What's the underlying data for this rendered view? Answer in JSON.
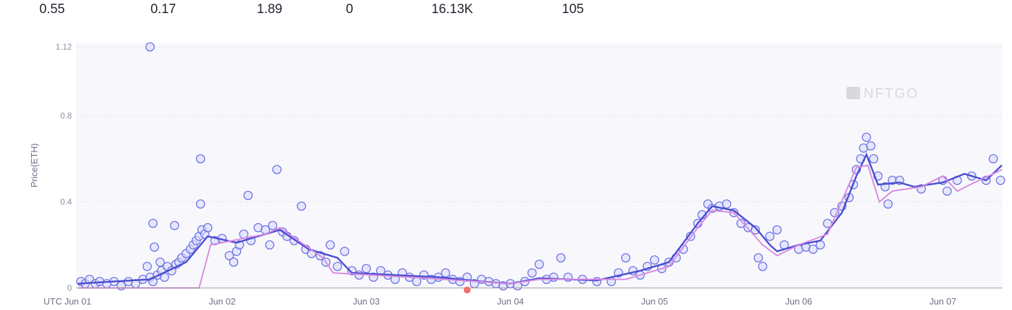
{
  "stats": [
    {
      "value": "0.55"
    },
    {
      "value": "0.17"
    },
    {
      "value": "1.89"
    },
    {
      "value": "0"
    },
    {
      "value": "16.13K"
    },
    {
      "value": "105"
    }
  ],
  "watermark": "NFTGO",
  "chart_data": {
    "type": "scatter",
    "ylabel": "Price(ETH)",
    "xlabel": "",
    "x_tick_labels": [
      "UTC Jun 01",
      "Jun 02",
      "Jun 03",
      "Jun 04",
      "Jun 05",
      "Jun 06",
      "Jun 07"
    ],
    "y_ticks": [
      0,
      0.4,
      0.8,
      1.12
    ],
    "y_tick_labels": [
      "0",
      "0.4",
      "0.8",
      "1.12"
    ],
    "xlim_days": [
      0,
      6.41
    ],
    "ylim": [
      0,
      1.12
    ],
    "grid": true,
    "colors": {
      "points": "#6b6fe6",
      "point_fill": "#d9dbfa",
      "line_avg": "#4b4fd0",
      "line_floor": "#d88ae0",
      "marker": "#f07070"
    },
    "series": [
      {
        "name": "average",
        "type": "line",
        "points": [
          [
            0,
            0.02
          ],
          [
            0.5,
            0.04
          ],
          [
            0.75,
            0.12
          ],
          [
            0.85,
            0.2
          ],
          [
            0.9,
            0.24
          ],
          [
            1.1,
            0.21
          ],
          [
            1.3,
            0.25
          ],
          [
            1.4,
            0.27
          ],
          [
            1.6,
            0.18
          ],
          [
            1.8,
            0.14
          ],
          [
            1.9,
            0.07
          ],
          [
            2.2,
            0.06
          ],
          [
            2.5,
            0.05
          ],
          [
            2.8,
            0.03
          ],
          [
            3.0,
            0.02
          ],
          [
            3.2,
            0.045
          ],
          [
            3.4,
            0.04
          ],
          [
            3.6,
            0.035
          ],
          [
            3.7,
            0.05
          ],
          [
            3.9,
            0.08
          ],
          [
            4.1,
            0.12
          ],
          [
            4.3,
            0.3
          ],
          [
            4.4,
            0.38
          ],
          [
            4.55,
            0.36
          ],
          [
            4.7,
            0.28
          ],
          [
            4.8,
            0.2
          ],
          [
            4.85,
            0.17
          ],
          [
            5.0,
            0.2
          ],
          [
            5.15,
            0.22
          ],
          [
            5.3,
            0.35
          ],
          [
            5.4,
            0.52
          ],
          [
            5.47,
            0.62
          ],
          [
            5.55,
            0.48
          ],
          [
            5.7,
            0.49
          ],
          [
            5.8,
            0.47
          ],
          [
            6.0,
            0.49
          ],
          [
            6.15,
            0.53
          ],
          [
            6.3,
            0.5
          ],
          [
            6.41,
            0.57
          ]
        ]
      },
      {
        "name": "floor",
        "type": "line",
        "points": [
          [
            0,
            0
          ],
          [
            0.84,
            0
          ],
          [
            0.92,
            0.2
          ],
          [
            1.3,
            0.25
          ],
          [
            1.4,
            0.28
          ],
          [
            1.7,
            0.14
          ],
          [
            1.77,
            0.07
          ],
          [
            2.3,
            0.05
          ],
          [
            3.0,
            0.02
          ],
          [
            3.2,
            0.04
          ],
          [
            3.8,
            0.04
          ],
          [
            4.1,
            0.1
          ],
          [
            4.3,
            0.28
          ],
          [
            4.4,
            0.36
          ],
          [
            4.55,
            0.35
          ],
          [
            4.75,
            0.2
          ],
          [
            4.85,
            0.15
          ],
          [
            5.0,
            0.2
          ],
          [
            5.2,
            0.25
          ],
          [
            5.4,
            0.56
          ],
          [
            5.48,
            0.57
          ],
          [
            5.56,
            0.4
          ],
          [
            5.65,
            0.45
          ],
          [
            5.85,
            0.47
          ],
          [
            6.0,
            0.52
          ],
          [
            6.1,
            0.45
          ],
          [
            6.25,
            0.5
          ],
          [
            6.35,
            0.53
          ],
          [
            6.41,
            0.55
          ]
        ]
      },
      {
        "name": "sales",
        "type": "scatter",
        "points": [
          [
            0.02,
            0.03
          ],
          [
            0.05,
            0.02
          ],
          [
            0.08,
            0.04
          ],
          [
            0.12,
            0.02
          ],
          [
            0.15,
            0.03
          ],
          [
            0.2,
            0.02
          ],
          [
            0.25,
            0.03
          ],
          [
            0.3,
            0.01
          ],
          [
            0.35,
            0.03
          ],
          [
            0.4,
            0.02
          ],
          [
            0.45,
            0.04
          ],
          [
            0.5,
            0.05
          ],
          [
            0.52,
            0.03
          ],
          [
            0.55,
            0.06
          ],
          [
            0.58,
            0.08
          ],
          [
            0.6,
            0.05
          ],
          [
            0.62,
            0.1
          ],
          [
            0.65,
            0.08
          ],
          [
            0.68,
            0.11
          ],
          [
            0.7,
            0.12
          ],
          [
            0.72,
            0.14
          ],
          [
            0.75,
            0.16
          ],
          [
            0.78,
            0.18
          ],
          [
            0.8,
            0.2
          ],
          [
            0.82,
            0.22
          ],
          [
            0.84,
            0.24
          ],
          [
            0.86,
            0.27
          ],
          [
            0.88,
            0.25
          ],
          [
            0.9,
            0.28
          ],
          [
            0.48,
            0.1
          ],
          [
            0.57,
            0.12
          ],
          [
            0.52,
            0.3
          ],
          [
            0.53,
            0.19
          ],
          [
            0.67,
            0.29
          ],
          [
            0.85,
            0.39
          ],
          [
            0.85,
            0.6
          ],
          [
            0.5,
            1.12
          ],
          [
            0.95,
            0.22
          ],
          [
            1.0,
            0.23
          ],
          [
            1.05,
            0.15
          ],
          [
            1.08,
            0.12
          ],
          [
            1.1,
            0.17
          ],
          [
            1.12,
            0.2
          ],
          [
            1.15,
            0.25
          ],
          [
            1.2,
            0.22
          ],
          [
            1.18,
            0.43
          ],
          [
            1.25,
            0.28
          ],
          [
            1.3,
            0.27
          ],
          [
            1.33,
            0.2
          ],
          [
            1.35,
            0.29
          ],
          [
            1.38,
            0.55
          ],
          [
            1.42,
            0.26
          ],
          [
            1.45,
            0.24
          ],
          [
            1.5,
            0.22
          ],
          [
            1.55,
            0.38
          ],
          [
            1.58,
            0.18
          ],
          [
            1.62,
            0.16
          ],
          [
            1.68,
            0.15
          ],
          [
            1.72,
            0.12
          ],
          [
            1.75,
            0.2
          ],
          [
            1.8,
            0.1
          ],
          [
            1.85,
            0.17
          ],
          [
            1.9,
            0.08
          ],
          [
            1.95,
            0.06
          ],
          [
            2.0,
            0.09
          ],
          [
            2.05,
            0.05
          ],
          [
            2.1,
            0.08
          ],
          [
            2.15,
            0.06
          ],
          [
            2.2,
            0.04
          ],
          [
            2.25,
            0.07
          ],
          [
            2.3,
            0.05
          ],
          [
            2.35,
            0.03
          ],
          [
            2.4,
            0.06
          ],
          [
            2.45,
            0.04
          ],
          [
            2.5,
            0.05
          ],
          [
            2.55,
            0.07
          ],
          [
            2.6,
            0.04
          ],
          [
            2.65,
            0.03
          ],
          [
            2.7,
            0.05
          ],
          [
            2.75,
            0.02
          ],
          [
            2.8,
            0.04
          ],
          [
            2.85,
            0.03
          ],
          [
            2.9,
            0.02
          ],
          [
            2.95,
            0.01
          ],
          [
            3.0,
            0.02
          ],
          [
            3.05,
            0.01
          ],
          [
            3.1,
            0.03
          ],
          [
            3.15,
            0.07
          ],
          [
            3.2,
            0.11
          ],
          [
            3.25,
            0.04
          ],
          [
            3.3,
            0.05
          ],
          [
            3.35,
            0.14
          ],
          [
            3.4,
            0.05
          ],
          [
            3.5,
            0.04
          ],
          [
            3.6,
            0.03
          ],
          [
            3.7,
            0.03
          ],
          [
            3.75,
            0.07
          ],
          [
            3.8,
            0.14
          ],
          [
            3.85,
            0.08
          ],
          [
            3.9,
            0.06
          ],
          [
            3.95,
            0.1
          ],
          [
            4.0,
            0.13
          ],
          [
            4.05,
            0.09
          ],
          [
            4.1,
            0.12
          ],
          [
            4.15,
            0.14
          ],
          [
            4.2,
            0.18
          ],
          [
            4.25,
            0.24
          ],
          [
            4.3,
            0.3
          ],
          [
            4.33,
            0.34
          ],
          [
            4.37,
            0.39
          ],
          [
            4.4,
            0.37
          ],
          [
            4.45,
            0.38
          ],
          [
            4.5,
            0.39
          ],
          [
            4.55,
            0.35
          ],
          [
            4.6,
            0.3
          ],
          [
            4.65,
            0.28
          ],
          [
            4.7,
            0.27
          ],
          [
            4.72,
            0.14
          ],
          [
            4.75,
            0.1
          ],
          [
            4.8,
            0.24
          ],
          [
            4.85,
            0.27
          ],
          [
            4.9,
            0.2
          ],
          [
            5.0,
            0.18
          ],
          [
            5.05,
            0.19
          ],
          [
            5.1,
            0.18
          ],
          [
            5.15,
            0.2
          ],
          [
            5.2,
            0.3
          ],
          [
            5.25,
            0.35
          ],
          [
            5.3,
            0.38
          ],
          [
            5.35,
            0.42
          ],
          [
            5.38,
            0.48
          ],
          [
            5.4,
            0.55
          ],
          [
            5.43,
            0.6
          ],
          [
            5.45,
            0.65
          ],
          [
            5.47,
            0.7
          ],
          [
            5.5,
            0.66
          ],
          [
            5.52,
            0.6
          ],
          [
            5.55,
            0.52
          ],
          [
            5.6,
            0.47
          ],
          [
            5.62,
            0.39
          ],
          [
            5.65,
            0.5
          ],
          [
            5.7,
            0.5
          ],
          [
            5.85,
            0.46
          ],
          [
            6.0,
            0.5
          ],
          [
            6.03,
            0.45
          ],
          [
            6.1,
            0.5
          ],
          [
            6.2,
            0.52
          ],
          [
            6.3,
            0.5
          ],
          [
            6.35,
            0.6
          ],
          [
            6.4,
            0.5
          ]
        ]
      }
    ],
    "annotations": [
      {
        "type": "marker",
        "x_day": 2.7,
        "y": 0
      }
    ]
  }
}
